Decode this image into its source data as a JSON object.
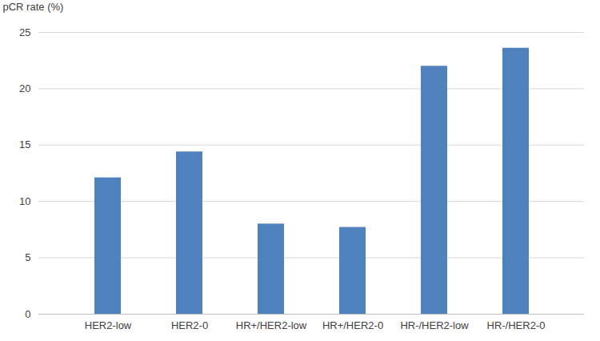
{
  "chart_data": {
    "type": "bar",
    "y_label": "pCR rate (%)",
    "categories": [
      "HER2-low",
      "HER2-0",
      "HR+/HER2-low",
      "HR+/HER2-0",
      "HR-/HER2-low",
      "HR-/HER2-0"
    ],
    "values": [
      12.1,
      14.4,
      8.0,
      7.7,
      22.0,
      23.6
    ],
    "color": "#4f81bd",
    "ylim": [
      0,
      25
    ],
    "yticks": [
      0,
      5,
      10,
      15,
      20,
      25
    ],
    "grid": true
  }
}
